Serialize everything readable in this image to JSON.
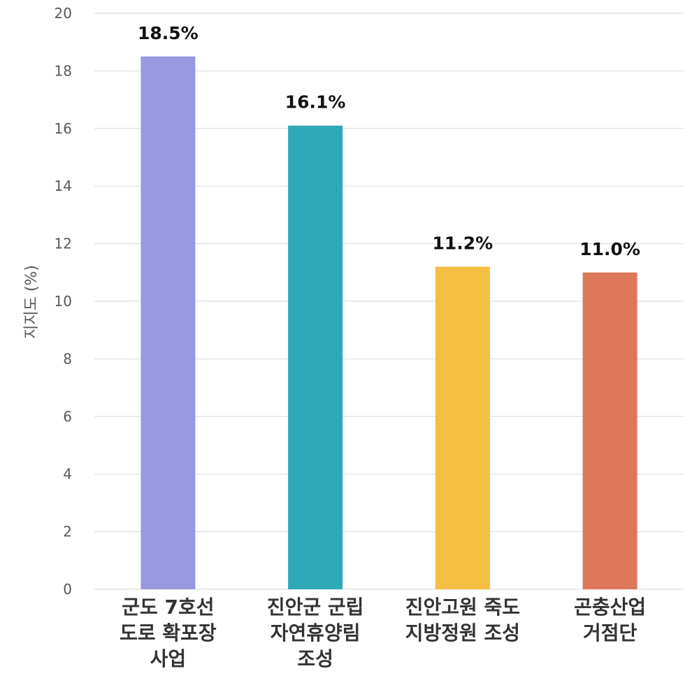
{
  "chart_data": {
    "type": "bar",
    "categories": [
      [
        "군도 7호선",
        "도로 확포장",
        "사업"
      ],
      [
        "진안군 군립",
        "자연휴양림",
        "조성"
      ],
      [
        "진안고원 죽도",
        "지방정원 조성"
      ],
      [
        "곤충산업",
        "거점단"
      ]
    ],
    "values": [
      18.5,
      16.1,
      11.2,
      11.0
    ],
    "data_labels": [
      "18.5%",
      "16.1%",
      "11.2%",
      "11.0%"
    ],
    "colors": [
      "#9999E0",
      "#2FA8B8",
      "#F4BE42",
      "#DC7759"
    ],
    "title": "",
    "xlabel": "",
    "ylabel": "지지도 (%)",
    "ylim": [
      0,
      20
    ],
    "yticks": [
      0,
      2,
      4,
      6,
      8,
      10,
      12,
      14,
      16,
      18,
      20
    ],
    "grid": true,
    "legend": "none"
  }
}
